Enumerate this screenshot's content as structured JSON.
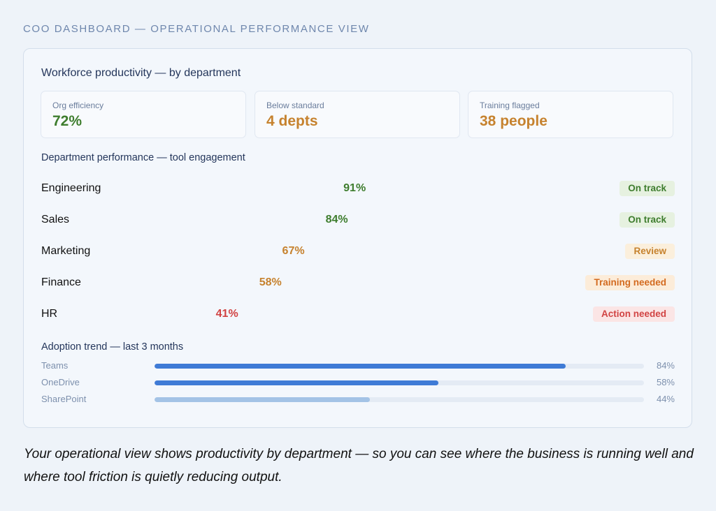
{
  "header": {
    "title": "COO DASHBOARD — OPERATIONAL PERFORMANCE VIEW"
  },
  "card": {
    "title": "Workforce productivity — by department",
    "kpis": [
      {
        "label": "Org efficiency",
        "value": "72%",
        "color": "#3e7d2e"
      },
      {
        "label": "Below standard",
        "value": "4 depts",
        "color": "#c6822e"
      },
      {
        "label": "Training flagged",
        "value": "38 people",
        "color": "#c6822e"
      }
    ],
    "departments_title": "Department performance — tool engagement",
    "departments": [
      {
        "name": "Engineering",
        "pct": "91%",
        "value": 91,
        "status": "On track",
        "pct_color": "#3e7d2e",
        "badge_text": "#3e7d2e",
        "badge_bg": "#e6f1e0"
      },
      {
        "name": "Sales",
        "pct": "84%",
        "value": 84,
        "status": "On track",
        "pct_color": "#3e7d2e",
        "badge_text": "#3e7d2e",
        "badge_bg": "#e6f1e0"
      },
      {
        "name": "Marketing",
        "pct": "67%",
        "value": 67,
        "status": "Review",
        "pct_color": "#c6822e",
        "badge_text": "#c6822e",
        "badge_bg": "#fbefdc"
      },
      {
        "name": "Finance",
        "pct": "58%",
        "value": 58,
        "status": "Training needed",
        "pct_color": "#c6822e",
        "badge_text": "#d36a1f",
        "badge_bg": "#fcecd9"
      },
      {
        "name": "HR",
        "pct": "41%",
        "value": 41,
        "status": "Action needed",
        "pct_color": "#d14343",
        "badge_text": "#d14343",
        "badge_bg": "#fbe5e5"
      }
    ],
    "adoption_title": "Adoption trend — last 3 months",
    "adoption": [
      {
        "name": "Teams",
        "pct": "84%",
        "value": 84,
        "color": "#3f7bd6"
      },
      {
        "name": "OneDrive",
        "pct": "58%",
        "value": 58,
        "color": "#3f7bd6"
      },
      {
        "name": "SharePoint",
        "pct": "44%",
        "value": 44,
        "color": "#a3c3e6"
      }
    ]
  },
  "caption": "Your operational view shows productivity by department — so you can see where the business is running well and where tool friction is quietly reducing output."
}
